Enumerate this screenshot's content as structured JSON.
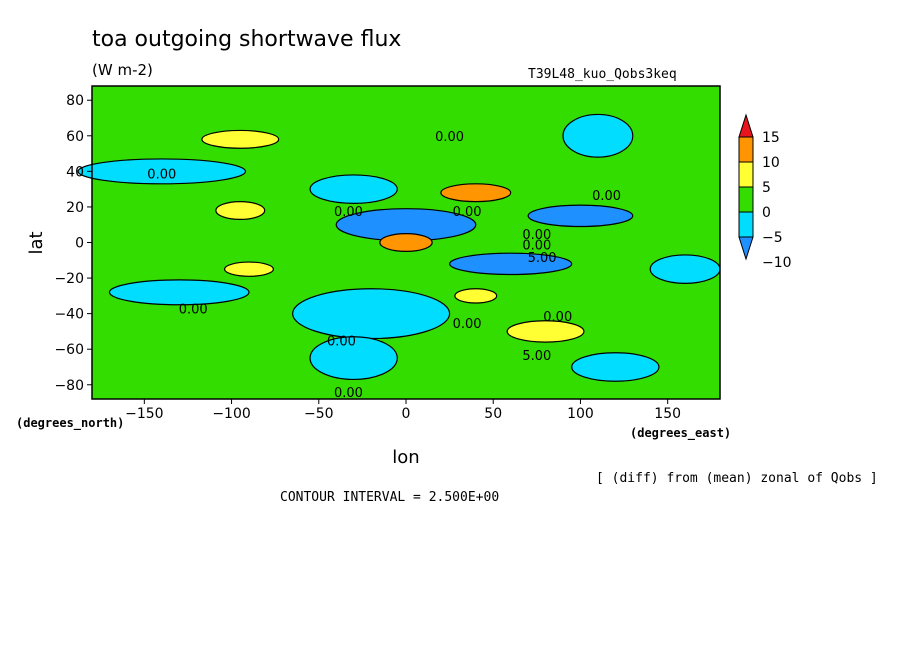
{
  "chart_data": {
    "type": "heatmap",
    "title": "toa outgoing shortwave flux",
    "units": "(W m-2)",
    "run_label": "T39L48_kuo_Qobs3keq",
    "xlabel": "lon",
    "ylabel": "lat",
    "x_unit_label": "(degrees_east)",
    "y_unit_label": "(degrees_north)",
    "xlim": [
      -180,
      180
    ],
    "ylim": [
      -88,
      88
    ],
    "x_ticks": [
      -150,
      -100,
      -50,
      0,
      50,
      100,
      150
    ],
    "y_ticks": [
      80,
      60,
      40,
      20,
      0,
      -20,
      -40,
      -60,
      -80
    ],
    "footnote": "[ (diff) from (mean) zonal of Qobs ]",
    "contour_interval_text": "CONTOUR INTERVAL = 2.500E+00",
    "colorbar": {
      "levels": [
        15,
        10,
        5,
        0,
        -5,
        -10
      ],
      "bands": [
        {
          "from": 15,
          "to": 20,
          "color": "#e8141e"
        },
        {
          "from": 10,
          "to": 15,
          "color": "#ff9500"
        },
        {
          "from": 5,
          "to": 10,
          "color": "#ffff33"
        },
        {
          "from": 0,
          "to": 5,
          "color": "#33dd00"
        },
        {
          "from": -5,
          "to": 0,
          "color": "#00ddff"
        },
        {
          "from": -10,
          "to": -5,
          "color": "#1e90ff"
        }
      ]
    },
    "background_color": "#33dd00",
    "regions": [
      {
        "lon": -140,
        "lat": 40,
        "rx": 48,
        "ry": 7,
        "value": -3
      },
      {
        "lon": -95,
        "lat": 58,
        "rx": 22,
        "ry": 5,
        "value": 6
      },
      {
        "lon": -95,
        "lat": 18,
        "rx": 14,
        "ry": 5,
        "value": 7
      },
      {
        "lon": -90,
        "lat": -15,
        "rx": 14,
        "ry": 4,
        "value": 6
      },
      {
        "lon": -130,
        "lat": -28,
        "rx": 40,
        "ry": 7,
        "value": -3
      },
      {
        "lon": -30,
        "lat": 30,
        "rx": 25,
        "ry": 8,
        "value": -3
      },
      {
        "lon": -20,
        "lat": -40,
        "rx": 45,
        "ry": 14,
        "value": -3
      },
      {
        "lon": -30,
        "lat": -65,
        "rx": 25,
        "ry": 12,
        "value": -3
      },
      {
        "lon": 0,
        "lat": 10,
        "rx": 40,
        "ry": 9,
        "value": -7
      },
      {
        "lon": 60,
        "lat": -12,
        "rx": 35,
        "ry": 6,
        "value": -7
      },
      {
        "lon": 100,
        "lat": 15,
        "rx": 30,
        "ry": 6,
        "value": -7
      },
      {
        "lon": 0,
        "lat": 0,
        "rx": 15,
        "ry": 5,
        "value": 12
      },
      {
        "lon": 40,
        "lat": 28,
        "rx": 20,
        "ry": 5,
        "value": 11
      },
      {
        "lon": 40,
        "lat": -30,
        "rx": 12,
        "ry": 4,
        "value": 7
      },
      {
        "lon": 80,
        "lat": -50,
        "rx": 22,
        "ry": 6,
        "value": 8
      },
      {
        "lon": 110,
        "lat": 60,
        "rx": 20,
        "ry": 12,
        "value": -3
      },
      {
        "lon": 160,
        "lat": -15,
        "rx": 20,
        "ry": 8,
        "value": -3
      },
      {
        "lon": 120,
        "lat": -70,
        "rx": 25,
        "ry": 8,
        "value": -3
      }
    ],
    "contour_labels": [
      {
        "lon": -140,
        "lat": 36,
        "text": "0.00"
      },
      {
        "lon": 25,
        "lat": 57,
        "text": "0.00"
      },
      {
        "lon": 115,
        "lat": 24,
        "text": "0.00"
      },
      {
        "lon": -33,
        "lat": 15,
        "text": "0.00"
      },
      {
        "lon": 35,
        "lat": 15,
        "text": "0.00"
      },
      {
        "lon": 75,
        "lat": 2,
        "text": "0.00"
      },
      {
        "lon": 75,
        "lat": -4,
        "text": "0.00"
      },
      {
        "lon": 78,
        "lat": -11,
        "text": "5.00"
      },
      {
        "lon": -122,
        "lat": -40,
        "text": "0.00"
      },
      {
        "lon": 35,
        "lat": -48,
        "text": "0.00"
      },
      {
        "lon": 87,
        "lat": -44,
        "text": "0.00"
      },
      {
        "lon": -37,
        "lat": -58,
        "text": "0.00"
      },
      {
        "lon": 75,
        "lat": -66,
        "text": "5.00"
      },
      {
        "lon": -33,
        "lat": -87,
        "text": "0.00"
      }
    ]
  }
}
